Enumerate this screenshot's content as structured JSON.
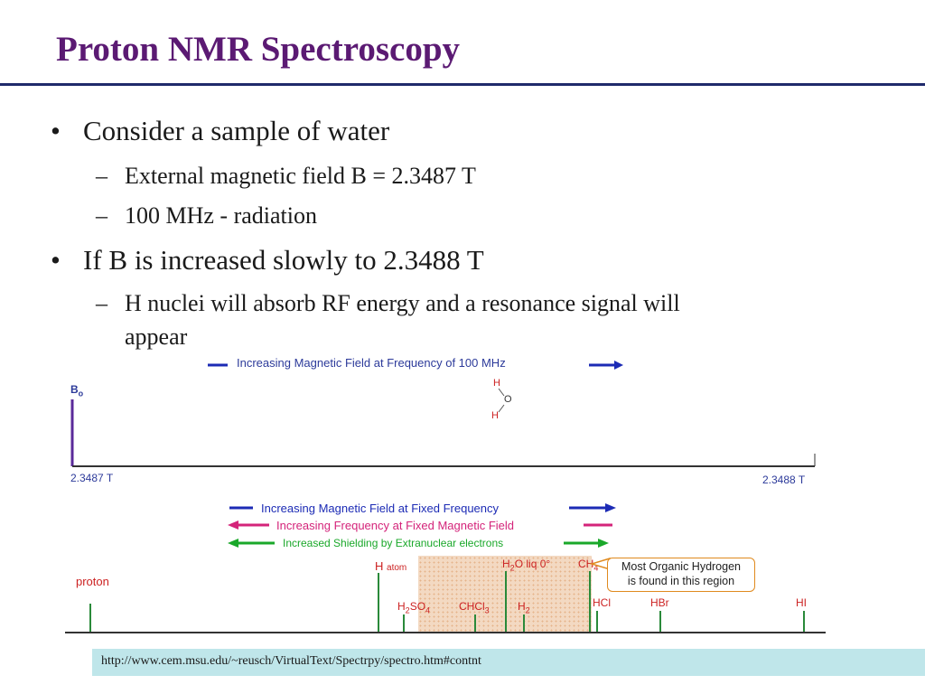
{
  "slide": {
    "title": "Proton NMR Spectroscopy",
    "bullets": [
      {
        "text": "Consider a sample of water",
        "subs": [
          "External magnetic field B = 2.3487 T",
          "100 MHz - radiation"
        ]
      },
      {
        "text": "If B is increased slowly to 2.3488 T",
        "subs": [
          "H nuclei will absorb RF energy and a resonance signal will",
          "appear"
        ]
      }
    ],
    "bullet_glyph": "•",
    "dash_glyph": "–"
  },
  "diagram": {
    "top_arrow_label": "Increasing Magnetic Field at Frequency of 100 MHz",
    "b0": "B",
    "b0_sub": "o",
    "left_field": "2.3487 T",
    "right_field": "2.3488 T",
    "water": {
      "h_top": "H",
      "o": "O",
      "h_bottom": "H"
    },
    "legend": [
      {
        "text": "Increasing Magnetic Field at Fixed Frequency",
        "color": "#1c2bb5"
      },
      {
        "text": "Increasing Frequency at Fixed Magnetic Field",
        "color": "#d4247a"
      },
      {
        "text": "Increased Shielding by Extranuclear electrons",
        "color": "#1aa82a"
      }
    ],
    "peaks": {
      "proton": "proton",
      "h_atom_h": "H",
      "h_atom_sub": "atom",
      "h2so4": {
        "a": "H",
        "s1": "2",
        "b": "SO",
        "s2": "4"
      },
      "chcl3": {
        "a": "CHCl",
        "s1": "3"
      },
      "h2": {
        "a": "H",
        "s1": "2"
      },
      "h2o": {
        "a": "H",
        "s1": "2",
        "b": "O liq 0°"
      },
      "ch4": {
        "a": "CH",
        "s1": "4"
      },
      "hcl": "HCl",
      "hbr": "HBr",
      "hi": "HI"
    },
    "callout": [
      "Most Organic Hydrogen",
      "is found in this region"
    ]
  },
  "footer": {
    "url": "http://www.cem.msu.edu/~reusch/VirtualText/Spectrpy/spectro.htm#contnt"
  },
  "colors": {
    "title": "#5b1a73",
    "red_label": "#cc2222",
    "peak_green": "#2a8a3a",
    "region_fill": "#f3d9c2",
    "callout_border": "#e08a1e",
    "url_bar": "#bfe6ea"
  }
}
